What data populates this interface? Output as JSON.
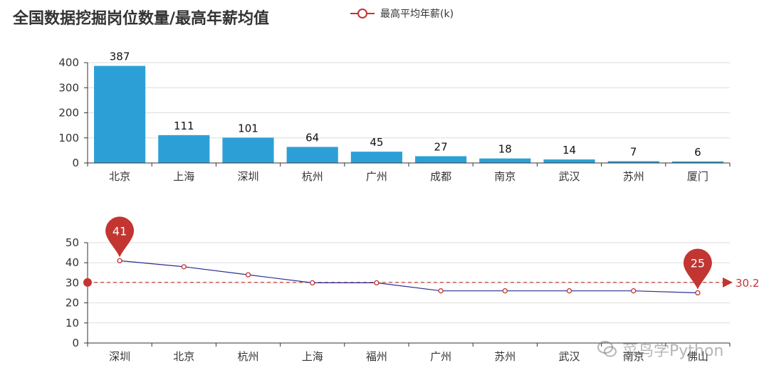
{
  "title": "全国数据挖掘岗位数量/最高年薪均值",
  "legend": {
    "label": "最高平均年薪(k)"
  },
  "watermark": "菜鸟学Python",
  "colors": {
    "bar": "#2ca0d6",
    "line": "#2b2d8f",
    "accent": "#c23531"
  },
  "chart_data": [
    {
      "type": "bar",
      "categories": [
        "北京",
        "上海",
        "深圳",
        "杭州",
        "广州",
        "成都",
        "南京",
        "武汉",
        "苏州",
        "厦门"
      ],
      "values": [
        387,
        111,
        101,
        64,
        45,
        27,
        18,
        14,
        7,
        6
      ],
      "ylim": [
        0,
        400
      ],
      "yticks": [
        0,
        100,
        200,
        300,
        400
      ],
      "data_labels": true,
      "grid": true
    },
    {
      "type": "line",
      "categories": [
        "深圳",
        "北京",
        "杭州",
        "上海",
        "福州",
        "广州",
        "苏州",
        "武汉",
        "南京",
        "佛山"
      ],
      "series": [
        {
          "name": "最高平均年薪(k)",
          "values": [
            41,
            38,
            34,
            30,
            30,
            26,
            26,
            26,
            26,
            25
          ]
        }
      ],
      "ylim": [
        0,
        50
      ],
      "yticks": [
        0,
        10,
        20,
        30,
        40,
        50
      ],
      "mark_points": [
        {
          "label": "41",
          "category": "深圳",
          "value": 41
        },
        {
          "label": "25",
          "category": "佛山",
          "value": 25
        }
      ],
      "mark_line": {
        "label": "30.2",
        "value": 30.2
      },
      "grid": true
    }
  ]
}
